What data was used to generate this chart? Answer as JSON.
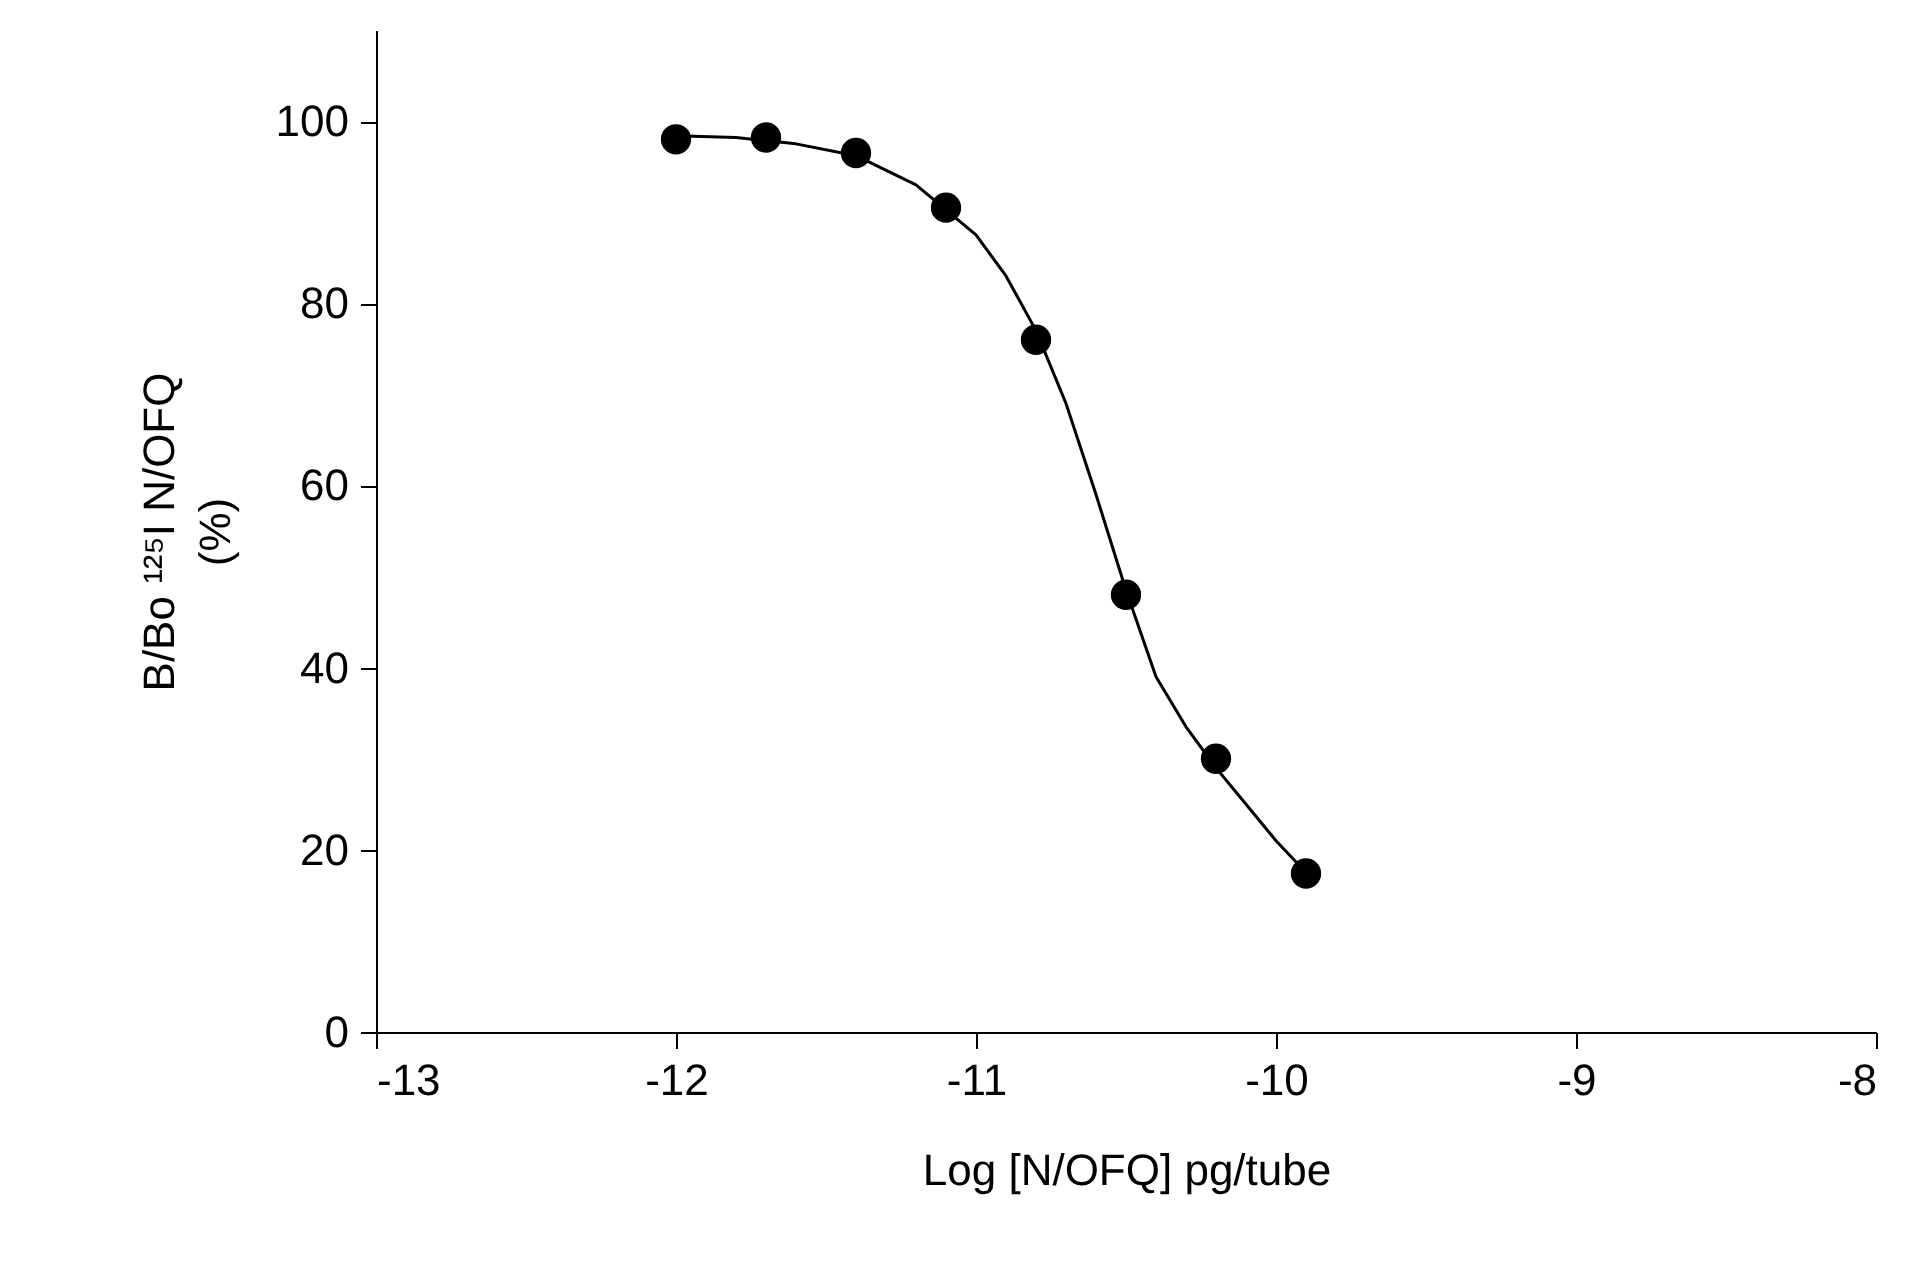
{
  "chart_data": {
    "type": "scatter",
    "xlabel": "Log [N/OFQ] pg/tube",
    "ylabel": "B/Bo ¹²⁵I N/OFQ\n(%)",
    "xlim": [
      -13,
      -8
    ],
    "xticks": [
      -13,
      -12,
      -11,
      -10,
      -9,
      -8
    ],
    "ylim": [
      0,
      110
    ],
    "yticks": [
      0,
      20,
      40,
      60,
      80,
      100
    ],
    "grid": false,
    "series": [
      {
        "color": "#000000",
        "marker": "circle",
        "x": [
          -12,
          -11.7,
          -11.4,
          -11.1,
          -10.8,
          -10.5,
          -10.2,
          -9.9
        ],
        "values": [
          98,
          98.2,
          96.5,
          90.5,
          76,
          48,
          30,
          17.4
        ]
      },
      {
        "type": "line",
        "color": "#000000",
        "line_style": "solid",
        "x": [
          -12,
          -11.8,
          -11.6,
          -11.4,
          -11.2,
          -11.0,
          -10.9,
          -10.8,
          -10.7,
          -10.6,
          -10.5,
          -10.4,
          -10.3,
          -10.2,
          -10.1,
          -10.0,
          -9.9
        ],
        "values": [
          98.4,
          98.2,
          97.5,
          96.2,
          93,
          87.5,
          83,
          77,
          69,
          59,
          48.5,
          39,
          33.5,
          29,
          25,
          21,
          17.5
        ]
      }
    ]
  }
}
